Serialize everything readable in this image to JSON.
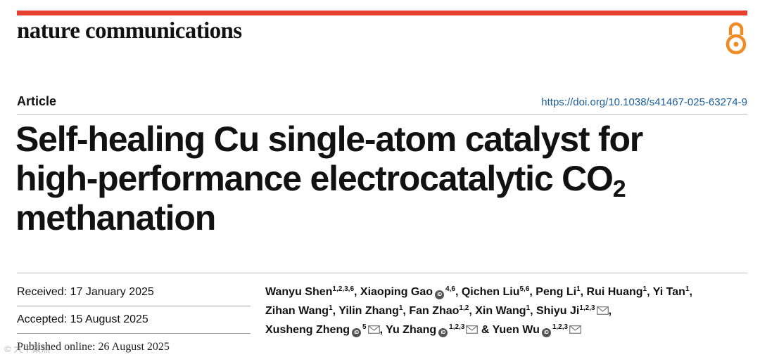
{
  "header": {
    "journal_name": "nature communications",
    "open_access_icon": "open-access-icon",
    "accent_color": "#e8402e",
    "oa_color": "#f08a24"
  },
  "meta": {
    "article_type": "Article",
    "doi": "https://doi.org/10.1038/s41467-025-63274-9"
  },
  "title": {
    "line1": "Self-healing Cu single-atom catalyst for",
    "line2": "high-performance electrocatalytic CO",
    "line2_sub": "2",
    "line3": "methanation"
  },
  "dates": {
    "received": "Received: 17 January 2025",
    "accepted": "Accepted: 15 August 2025",
    "published": "Published online: 26 August 2025"
  },
  "watermark": "© 大牛聚焦",
  "authors": [
    {
      "name": "Wanyu Shen",
      "sup": "1,2,3,6",
      "orcid": false,
      "mail": false,
      "sep": ", "
    },
    {
      "name": "Xiaoping Gao",
      "sup": "4,6",
      "orcid": true,
      "mail": false,
      "sep": ", "
    },
    {
      "name": "Qichen Liu",
      "sup": "5,6",
      "orcid": false,
      "mail": false,
      "sep": ", "
    },
    {
      "name": "Peng Li",
      "sup": "1",
      "orcid": false,
      "mail": false,
      "sep": ", "
    },
    {
      "name": "Rui Huang",
      "sup": "1",
      "orcid": false,
      "mail": false,
      "sep": ", "
    },
    {
      "name": "Yi Tan",
      "sup": "1",
      "orcid": false,
      "mail": false,
      "sep": ","
    },
    {
      "name": "Zihan Wang",
      "sup": "1",
      "orcid": false,
      "mail": false,
      "sep": ", "
    },
    {
      "name": "Yilin Zhang",
      "sup": "1",
      "orcid": false,
      "mail": false,
      "sep": ", "
    },
    {
      "name": "Fan Zhao",
      "sup": "1,2",
      "orcid": false,
      "mail": false,
      "sep": ", "
    },
    {
      "name": "Xin Wang",
      "sup": "1",
      "orcid": false,
      "mail": false,
      "sep": ", "
    },
    {
      "name": "Shiyu Ji",
      "sup": "1,2,3",
      "orcid": false,
      "mail": true,
      "sep": ","
    },
    {
      "name": "Xusheng Zheng",
      "sup": "5",
      "orcid": true,
      "mail": true,
      "sep": ", "
    },
    {
      "name": "Yu Zhang",
      "sup": "1,2,3",
      "orcid": true,
      "mail": true,
      "sep": " & "
    },
    {
      "name": "Yuen Wu",
      "sup": "1,2,3",
      "orcid": true,
      "mail": true,
      "sep": ""
    }
  ],
  "author_lines": [
    [
      0,
      1,
      2,
      3,
      4,
      5
    ],
    [
      6,
      7,
      8,
      9,
      10
    ],
    [
      11,
      12,
      13
    ]
  ]
}
